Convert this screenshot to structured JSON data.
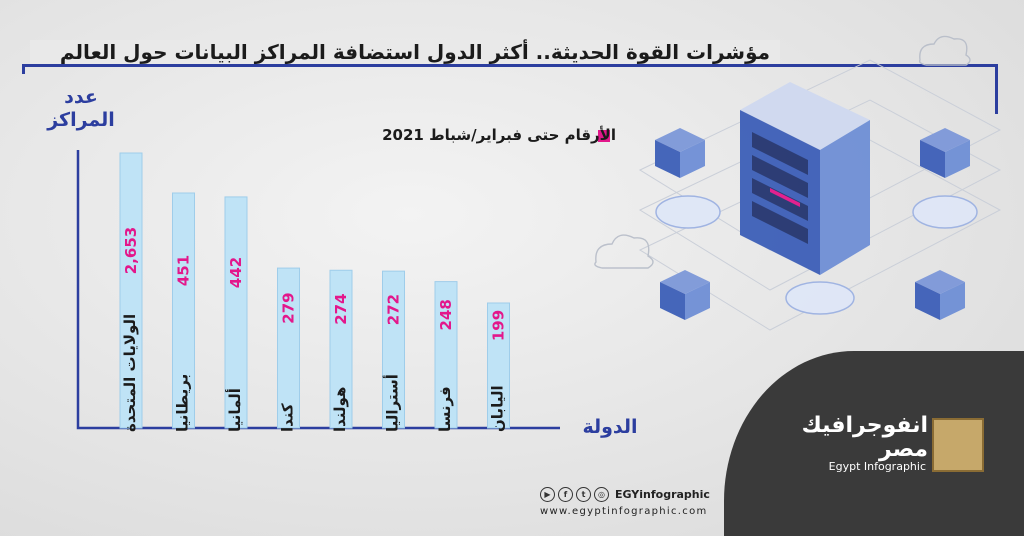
{
  "chart_data": {
    "type": "bar",
    "title": "مؤشرات القوة الحديثة.. أكثر الدول استضافة المراكز البيانات حول العالم",
    "subtitle": "الأرقام حتى فبراير/شباط 2021",
    "xlabel": "الدولة",
    "ylabel": "عدد المراكز",
    "categories": [
      "الولايات المتحدة",
      "بريطانيا",
      "ألمانيا",
      "كندا",
      "هولندا",
      "أستراليا",
      "فرنسا",
      "اليابان"
    ],
    "values": [
      2653,
      451,
      442,
      279,
      274,
      272,
      248,
      199
    ],
    "value_labels": [
      "2,653",
      "451",
      "442",
      "279",
      "274",
      "272",
      "248",
      "199"
    ],
    "grid": false,
    "bar_color": "#bfe3f6",
    "label_color": "#e3178b"
  },
  "brand": {
    "name_ar": "انفوجرافيك مصر",
    "name_en": "Egypt Infographic",
    "handle": "EGYinfographic",
    "website": "www.egyptinfographic.com"
  },
  "colors": {
    "accent": "#2c3e9f",
    "highlight": "#e3178b",
    "dark_panel": "#3a3a3a"
  }
}
